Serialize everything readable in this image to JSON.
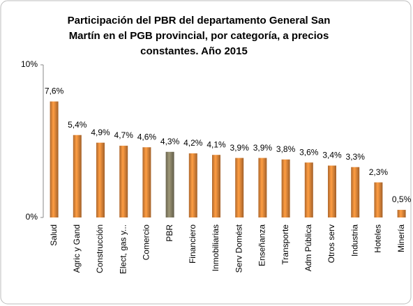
{
  "chart_data": {
    "type": "bar",
    "title": [
      "Participación del PBR del departamento General San",
      "Martín en el PGB provincial, por categoría, a precios",
      "constantes. Año 2015"
    ],
    "categories": [
      "Salud",
      "Agric y Gand",
      "Construcción",
      "Elect, gas y...",
      "Comercio",
      "PBR",
      "Financiero",
      "Inmobiliarias",
      "Serv Domést",
      "Enseñanza",
      "Transporte",
      "Adm Pública",
      "Otros serv",
      "Industria",
      "Hoteles",
      "Minería"
    ],
    "values": [
      7.6,
      5.4,
      4.9,
      4.7,
      4.6,
      4.3,
      4.2,
      4.1,
      3.9,
      3.9,
      3.8,
      3.6,
      3.4,
      3.3,
      2.3,
      0.5
    ],
    "value_labels": [
      "7,6%",
      "5,4%",
      "4,9%",
      "4,7%",
      "4,6%",
      "4,3%",
      "4,2%",
      "4,1%",
      "3,9%",
      "3,9%",
      "3,8%",
      "3,6%",
      "3,4%",
      "3,3%",
      "2,3%",
      "0,5%"
    ],
    "colors": [
      "#e8893a",
      "#e8893a",
      "#e8893a",
      "#e8893a",
      "#e8893a",
      "#8a8468",
      "#e8893a",
      "#e8893a",
      "#e8893a",
      "#e8893a",
      "#e8893a",
      "#e8893a",
      "#e8893a",
      "#e8893a",
      "#e8893a",
      "#e8893a"
    ],
    "ylim": [
      0,
      10
    ],
    "yticks": [
      {
        "value": 0,
        "label": "0%"
      },
      {
        "value": 10,
        "label": "10%"
      }
    ],
    "grid": false
  }
}
